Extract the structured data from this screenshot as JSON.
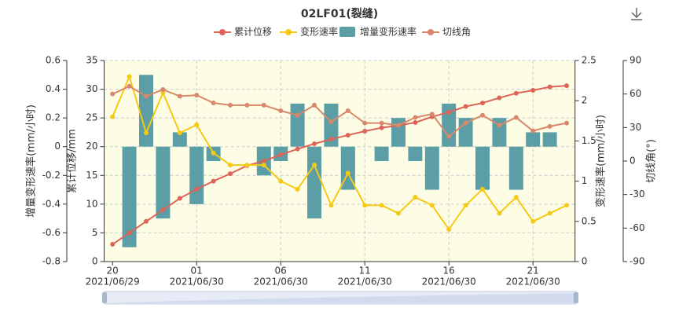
{
  "chart_data": {
    "type": "bar",
    "title": "02LF01(裂缝)",
    "categories": [
      [
        "20",
        "2021/06/29"
      ],
      null,
      null,
      null,
      null,
      [
        "01",
        "2021/06/30"
      ],
      null,
      null,
      null,
      null,
      [
        "06",
        "2021/06/30"
      ],
      null,
      null,
      null,
      null,
      [
        "11",
        "2021/06/30"
      ],
      null,
      null,
      null,
      null,
      [
        "16",
        "2021/06/30"
      ],
      null,
      null,
      null,
      null,
      [
        "21",
        "2021/06/30"
      ],
      null,
      null
    ],
    "axes": [
      {
        "label": "增量变形速率(mm/小时)",
        "ylim": [
          -0.8,
          0.6
        ],
        "yticks": [
          -0.8,
          -0.6,
          -0.4,
          -0.2,
          0,
          0.2,
          0.4,
          0.6
        ]
      },
      {
        "label": "累计位移/mm",
        "ylim": [
          0,
          35
        ],
        "yticks": [
          0,
          5,
          10,
          15,
          20,
          25,
          30,
          35
        ]
      },
      {
        "label": "变形速率(mm/小时)",
        "ylim": [
          0,
          2.5
        ],
        "yticks": [
          0,
          0.5,
          1,
          1.5,
          2,
          2.5
        ]
      },
      {
        "label": "切线角(°)",
        "ylim": [
          -90,
          90
        ],
        "yticks": [
          -90,
          -60,
          -30,
          0,
          30,
          60,
          90
        ]
      }
    ],
    "series": [
      {
        "name": "累计位移",
        "type": "line",
        "axis": 1,
        "color": "#dd6457",
        "values": [
          3,
          5,
          7,
          9,
          11,
          12.6,
          14,
          15.3,
          16.7,
          17.5,
          18.6,
          19.6,
          20.5,
          21.3,
          22,
          22.7,
          23.3,
          23.7,
          24.2,
          25.2,
          26,
          27,
          27.6,
          28.5,
          29.3,
          29.8,
          30.4,
          30.6
        ]
      },
      {
        "name": "变形速率",
        "type": "line",
        "axis": 2,
        "color": "#f5c916",
        "values": [
          1.8,
          2.3,
          1.6,
          2.1,
          1.6,
          1.7,
          1.35,
          1.2,
          1.2,
          1.2,
          1,
          0.9,
          1.2,
          0.7,
          1.1,
          0.7,
          0.7,
          0.6,
          0.8,
          0.7,
          0.4,
          0.7,
          0.9,
          0.6,
          0.8,
          0.5,
          0.6,
          0.7
        ]
      },
      {
        "name": "增量变形速率",
        "type": "bar",
        "axis": 0,
        "color": "#5b9ea6",
        "values": [
          0,
          -0.7,
          0.5,
          -0.5,
          0.1,
          -0.4,
          -0.1,
          0,
          0,
          -0.2,
          -0.1,
          0.3,
          -0.5,
          0.3,
          -0.3,
          0,
          -0.1,
          0.2,
          -0.1,
          -0.3,
          0.3,
          0.2,
          -0.3,
          0.2,
          -0.3,
          0.1,
          0.1,
          0
        ]
      },
      {
        "name": "切线角",
        "type": "line",
        "axis": 3,
        "color": "#d9886b",
        "values": [
          60,
          67,
          58,
          64,
          58,
          59,
          52,
          50,
          50,
          50,
          45,
          41,
          50,
          35,
          45,
          34,
          34,
          32,
          39,
          42,
          22,
          34,
          41,
          32,
          39,
          27,
          31,
          34
        ]
      }
    ],
    "grid": true
  }
}
